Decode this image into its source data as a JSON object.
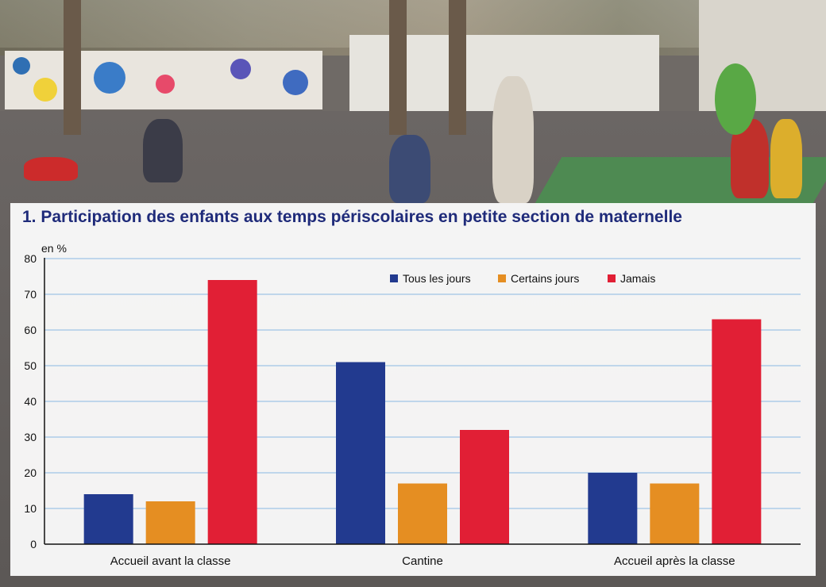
{
  "title": "1. Participation des enfants aux temps périscolaires en petite section de maternelle",
  "chart_data": {
    "type": "bar",
    "title": "1. Participation des enfants aux temps périscolaires en petite section de maternelle",
    "ylabel": "en %",
    "xlabel": "",
    "ylim": [
      0,
      80
    ],
    "yticks": [
      "0",
      "10",
      "20",
      "30",
      "40",
      "50",
      "60",
      "70",
      "80"
    ],
    "categories": [
      "Accueil avant la classe",
      "Cantine",
      "Accueil après la classe"
    ],
    "series": [
      {
        "name": "Tous les jours",
        "color": "#223a8f",
        "values": [
          14,
          51,
          20
        ]
      },
      {
        "name": "Certains jours",
        "color": "#e58e22",
        "values": [
          12,
          17,
          17
        ]
      },
      {
        "name": "Jamais",
        "color": "#e11f35",
        "values": [
          74,
          32,
          63
        ]
      }
    ],
    "grid": true,
    "legend": "top-right"
  }
}
